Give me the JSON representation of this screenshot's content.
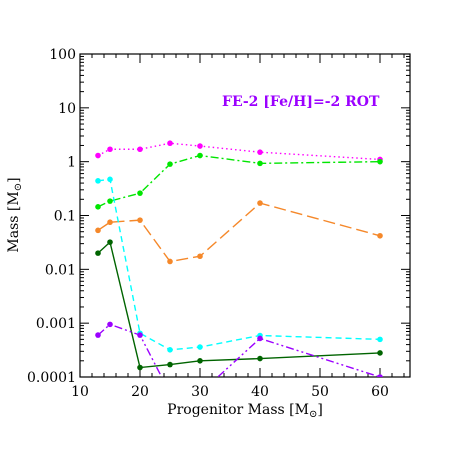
{
  "chart_data": {
    "type": "line",
    "title": "",
    "annotation": "FE-2 [Fe/H]=-2 ROT",
    "annotation_color": "#9b00ff",
    "xlabel_prefix": "Progenitor Mass [M",
    "xlabel_sub": "⊙",
    "xlabel_suffix": "]",
    "ylabel_prefix": "Mass [M",
    "ylabel_sub": "⊙",
    "ylabel_suffix": "]",
    "xlim": [
      10,
      65
    ],
    "ylim": [
      0.0001,
      100
    ],
    "yscale": "log",
    "x_ticks": [
      10,
      20,
      30,
      40,
      50,
      60
    ],
    "x_tick_labels": [
      "10",
      "20",
      "30",
      "40",
      "50",
      "60"
    ],
    "y_ticks": [
      0.0001,
      0.001,
      0.01,
      0.1,
      1,
      10,
      100
    ],
    "y_tick_labels": [
      "0.0001",
      "0.001",
      "0.01",
      "0.1",
      "1",
      "10",
      "100"
    ],
    "grid": false,
    "series": [
      {
        "color": "#ff00ff",
        "dash": "1.5 3",
        "x": [
          13,
          15,
          20,
          25,
          30,
          40,
          60
        ],
        "y": [
          1.3,
          1.7,
          1.7,
          2.2,
          1.95,
          1.5,
          1.1
        ]
      },
      {
        "color": "#00e600",
        "dash": "8 3 2 3",
        "x": [
          13,
          15,
          20,
          25,
          30,
          40,
          60
        ],
        "y": [
          0.145,
          0.185,
          0.26,
          0.9,
          1.3,
          0.93,
          1.0
        ]
      },
      {
        "color": "#f5882a",
        "dash": "12 5",
        "x": [
          13,
          15,
          20,
          25,
          30,
          40,
          60
        ],
        "y": [
          0.053,
          0.075,
          0.082,
          0.014,
          0.0175,
          0.17,
          0.042
        ]
      },
      {
        "color": "#00ffff",
        "dash": "6 4",
        "x": [
          13,
          15,
          20,
          25,
          30,
          40,
          60
        ],
        "y": [
          0.44,
          0.47,
          0.00065,
          0.00032,
          0.00036,
          0.00059,
          0.0005
        ]
      },
      {
        "color": "#006400",
        "dash": "",
        "x": [
          13,
          15,
          20,
          25,
          30,
          40,
          60
        ],
        "y": [
          0.02,
          0.032,
          0.00015,
          0.00017,
          0.0002,
          0.00022,
          0.00028
        ]
      },
      {
        "color": "#9b00ff",
        "dash": "8 3 2 3 2 3",
        "x": [
          13,
          15,
          20,
          25,
          30,
          40,
          60
        ],
        "y": [
          0.0006,
          0.00095,
          0.0006,
          5e-05,
          5e-05,
          0.00052,
          0.0001
        ]
      }
    ]
  }
}
